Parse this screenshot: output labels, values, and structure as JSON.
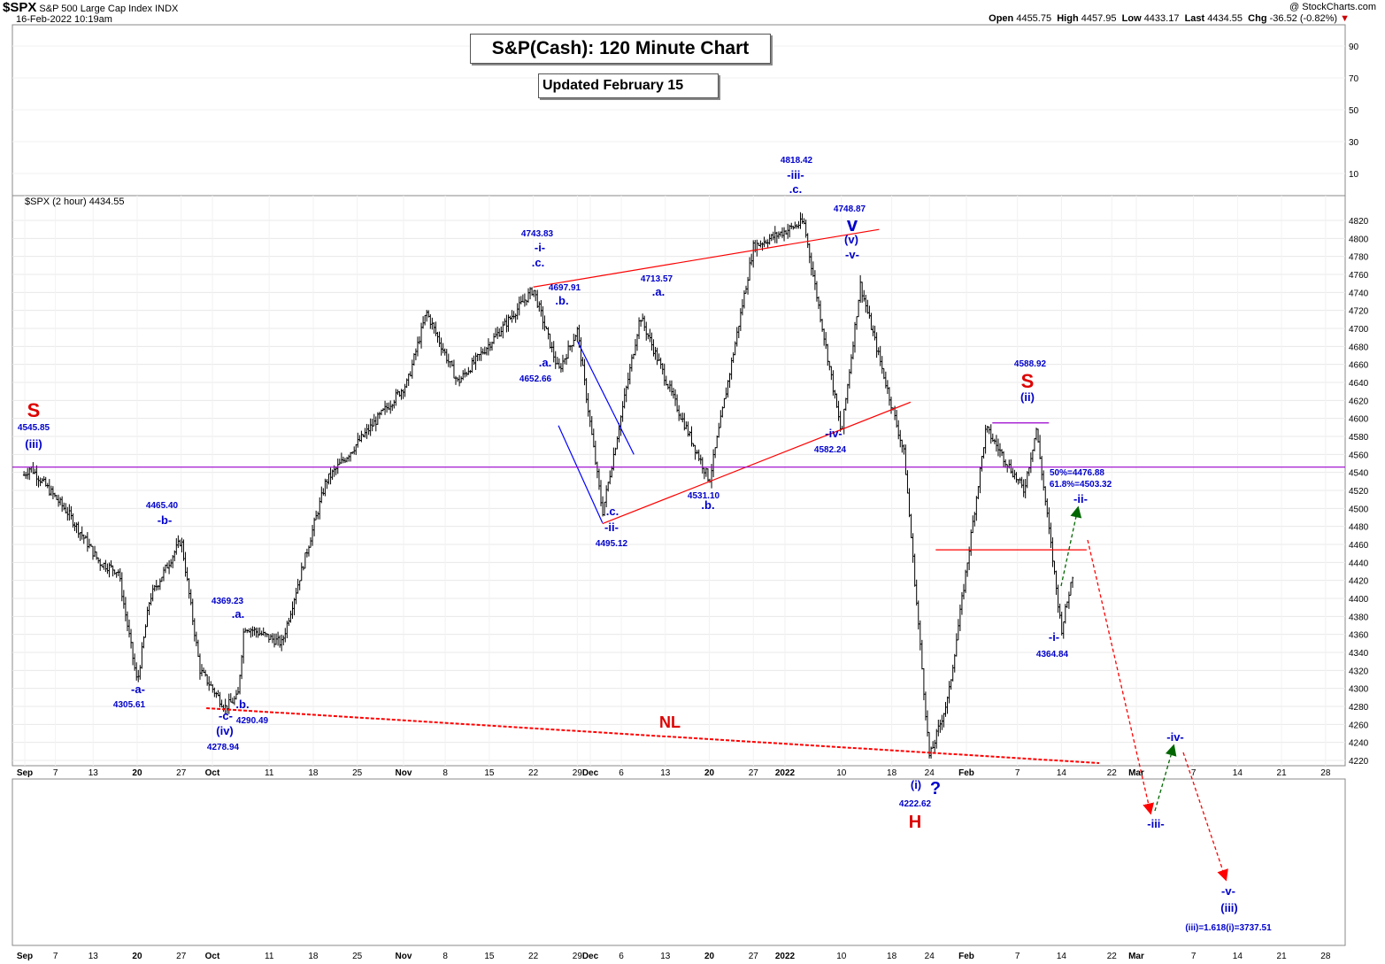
{
  "header": {
    "symbol": "$SPX",
    "description": "S&P 500 Large Cap Index",
    "exchange": "INDX",
    "datetime": "16-Feb-2022 10:19am",
    "copyright": "@ StockCharts.com",
    "open_label": "Open",
    "open": "4455.75",
    "high_label": "High",
    "high": "4457.95",
    "low_label": "Low",
    "low": "4433.17",
    "last_label": "Last",
    "last": "4434.55",
    "chg_label": "Chg",
    "chg": "-36.52 (-0.82%)",
    "legend": "$SPX (2 hour) 4434.55"
  },
  "title": "S&P(Cash): 120 Minute Chart",
  "subtitle": "Updated February 15",
  "colors": {
    "price": "#000000",
    "wave_label": "#0000cc",
    "pattern_label": "#dd0000",
    "trendline": "#ff0000",
    "horizontal": "#9900cc",
    "channel": "#0000ff",
    "projection_down": "#ff0000",
    "projection_up": "#006600",
    "grid": "#e8e8e8"
  },
  "chart_data": [
    {
      "type": "ohlc",
      "timeframe": "2 hour",
      "ylim": [
        4210,
        4830
      ],
      "y_ticks": [
        4220,
        4240,
        4260,
        4280,
        4300,
        4320,
        4340,
        4360,
        4380,
        4400,
        4420,
        4440,
        4460,
        4480,
        4500,
        4520,
        4540,
        4560,
        4580,
        4600,
        4620,
        4640,
        4660,
        4680,
        4700,
        4720,
        4740,
        4760,
        4780,
        4800,
        4820
      ],
      "x_tick_labels": [
        "Sep",
        "7",
        "13",
        "20",
        "27",
        "Oct",
        "11",
        "18",
        "25",
        "Nov",
        "8",
        "15",
        "22",
        "29",
        "Dec",
        "6",
        "13",
        "20",
        "27",
        "2022",
        "10",
        "18",
        "24",
        "Feb",
        "7",
        "14",
        "22",
        "Mar",
        "7",
        "14",
        "21",
        "28"
      ],
      "anchor_points": [
        {
          "x": "2021-09-02",
          "y": 4537
        },
        {
          "x": "2021-09-03",
          "y": 4545.85
        },
        {
          "x": "2021-09-09",
          "y": 4495
        },
        {
          "x": "2021-09-14",
          "y": 4440
        },
        {
          "x": "2021-09-17",
          "y": 4430
        },
        {
          "x": "2021-09-20",
          "y": 4305.61
        },
        {
          "x": "2021-09-22",
          "y": 4400
        },
        {
          "x": "2021-09-27",
          "y": 4465.4
        },
        {
          "x": "2021-09-30",
          "y": 4320
        },
        {
          "x": "2021-10-04",
          "y": 4278.94
        },
        {
          "x": "2021-10-07",
          "y": 4369.23
        },
        {
          "x": "2021-10-06",
          "y": 4290.49
        },
        {
          "x": "2021-10-13",
          "y": 4350
        },
        {
          "x": "2021-10-20",
          "y": 4530
        },
        {
          "x": "2021-11-02",
          "y": 4640
        },
        {
          "x": "2021-11-05",
          "y": 4718
        },
        {
          "x": "2021-11-10",
          "y": 4640
        },
        {
          "x": "2021-11-17",
          "y": 4700
        },
        {
          "x": "2021-11-22",
          "y": 4743.83
        },
        {
          "x": "2021-11-26",
          "y": 4652.66
        },
        {
          "x": "2021-11-29",
          "y": 4697.91
        },
        {
          "x": "2021-12-03",
          "y": 4495.12
        },
        {
          "x": "2021-12-09",
          "y": 4713.57
        },
        {
          "x": "2021-12-15",
          "y": 4610
        },
        {
          "x": "2021-12-20",
          "y": 4531.1
        },
        {
          "x": "2021-12-27",
          "y": 4791
        },
        {
          "x": "2022-01-04",
          "y": 4818.42
        },
        {
          "x": "2022-01-10",
          "y": 4582.24
        },
        {
          "x": "2022-01-13",
          "y": 4748.87
        },
        {
          "x": "2022-01-20",
          "y": 4560
        },
        {
          "x": "2022-01-24",
          "y": 4222.62
        },
        {
          "x": "2022-01-27",
          "y": 4290
        },
        {
          "x": "2022-02-02",
          "y": 4588.92
        },
        {
          "x": "2022-02-08",
          "y": 4520
        },
        {
          "x": "2022-02-10",
          "y": 4588
        },
        {
          "x": "2022-02-14",
          "y": 4364.84
        },
        {
          "x": "2022-02-16",
          "y": 4434.55
        }
      ]
    },
    {
      "type": "line",
      "name": "right_upper_scale",
      "y_ticks": [
        10,
        30,
        50,
        70,
        90
      ]
    }
  ],
  "lines": {
    "upper_channel": {
      "start": [
        "2021-11-22",
        4746
      ],
      "end": [
        "2022-01-16",
        4810
      ]
    },
    "lower_channel": {
      "start": [
        "2021-12-03",
        4483
      ],
      "end": [
        "2022-01-21",
        4618
      ]
    },
    "dec_wedge": {
      "start": [
        "2021-11-29",
        4686
      ],
      "end": [
        "2021-12-08",
        4560
      ]
    },
    "dec_wedge_low": {
      "start": [
        "2021-11-26",
        4592
      ],
      "end": [
        "2021-12-03",
        4484
      ]
    },
    "purple_level": {
      "y": 4545.85
    },
    "purple_level_short": {
      "start": "2022-02-03",
      "end": "2022-02-12",
      "y": 4595
    },
    "red_level_short": {
      "start": "2022-01-25",
      "end": "2022-02-18",
      "y": 4454
    },
    "neckline": {
      "start": [
        "2021-10-01",
        4278
      ],
      "end": [
        "2022-02-20",
        4217
      ]
    }
  },
  "annotations": [
    {
      "text": "S",
      "color": "pattern_label",
      "kind": "big"
    },
    {
      "text": "4545.85",
      "color": "wave_label",
      "kind": "price"
    },
    {
      "text": "(iii)",
      "color": "wave_label",
      "kind": "wave"
    },
    {
      "text": "4465.40",
      "color": "wave_label",
      "kind": "price"
    },
    {
      "text": "-b-",
      "color": "wave_label",
      "kind": "wave"
    },
    {
      "text": "-a-",
      "color": "wave_label",
      "kind": "wave"
    },
    {
      "text": "4305.61",
      "color": "wave_label",
      "kind": "price"
    },
    {
      "text": "4369.23",
      "color": "wave_label",
      "kind": "price"
    },
    {
      "text": ".a.",
      "color": "wave_label",
      "kind": "wave"
    },
    {
      "text": ".b.",
      "color": "wave_label",
      "kind": "wave"
    },
    {
      "text": "-c-",
      "color": "wave_label",
      "kind": "wave"
    },
    {
      "text": "4290.49",
      "color": "wave_label",
      "kind": "price"
    },
    {
      "text": "(iv)",
      "color": "wave_label",
      "kind": "wave"
    },
    {
      "text": "4278.94",
      "color": "wave_label",
      "kind": "price"
    },
    {
      "text": "4743.83",
      "color": "wave_label",
      "kind": "price"
    },
    {
      "text": "-i-",
      "color": "wave_label",
      "kind": "wave"
    },
    {
      "text": ".c.",
      "color": "wave_label",
      "kind": "wave"
    },
    {
      "text": "4697.91",
      "color": "wave_label",
      "kind": "price"
    },
    {
      "text": ".b.",
      "color": "wave_label",
      "kind": "wave"
    },
    {
      "text": ".a.",
      "color": "wave_label",
      "kind": "wave"
    },
    {
      "text": "4652.66",
      "color": "wave_label",
      "kind": "price"
    },
    {
      "text": ".c.",
      "color": "wave_label",
      "kind": "wave"
    },
    {
      "text": "-ii-",
      "color": "wave_label",
      "kind": "wave"
    },
    {
      "text": "4495.12",
      "color": "wave_label",
      "kind": "price"
    },
    {
      "text": "4713.57",
      "color": "wave_label",
      "kind": "price"
    },
    {
      "text": ".a.",
      "color": "wave_label",
      "kind": "wave"
    },
    {
      "text": ".b.",
      "color": "wave_label",
      "kind": "wave"
    },
    {
      "text": "4531.10",
      "color": "wave_label",
      "kind": "price"
    },
    {
      "text": "4818.42",
      "color": "wave_label",
      "kind": "price"
    },
    {
      "text": "-iii-",
      "color": "wave_label",
      "kind": "wave"
    },
    {
      "text": ".c.",
      "color": "wave_label",
      "kind": "wave"
    },
    {
      "text": "4748.87",
      "color": "wave_label",
      "kind": "price"
    },
    {
      "text": "v",
      "color": "wave_label",
      "kind": "big"
    },
    {
      "text": "(v)",
      "color": "wave_label",
      "kind": "wave"
    },
    {
      "text": "-v-",
      "color": "wave_label",
      "kind": "wave"
    },
    {
      "text": "-iv-",
      "color": "wave_label",
      "kind": "wave"
    },
    {
      "text": "4582.24",
      "color": "wave_label",
      "kind": "price"
    },
    {
      "text": "4588.92",
      "color": "wave_label",
      "kind": "price"
    },
    {
      "text": "S",
      "color": "pattern_label",
      "kind": "big"
    },
    {
      "text": "(ii)",
      "color": "wave_label",
      "kind": "wave"
    },
    {
      "text": "50%=4476.88",
      "color": "wave_label",
      "kind": "price"
    },
    {
      "text": "61.8%=4503.32",
      "color": "wave_label",
      "kind": "price"
    },
    {
      "text": "-ii-",
      "color": "wave_label",
      "kind": "wave"
    },
    {
      "text": "-i-",
      "color": "wave_label",
      "kind": "wave"
    },
    {
      "text": "4364.84",
      "color": "wave_label",
      "kind": "price"
    },
    {
      "text": "NL",
      "color": "pattern_label",
      "kind": "big"
    },
    {
      "text": "(i)",
      "color": "wave_label",
      "kind": "wave"
    },
    {
      "text": "?",
      "color": "wave_label",
      "kind": "big"
    },
    {
      "text": "4222.62",
      "color": "wave_label",
      "kind": "price"
    },
    {
      "text": "H",
      "color": "pattern_label",
      "kind": "big"
    },
    {
      "text": "-iv-",
      "color": "wave_label",
      "kind": "wave"
    },
    {
      "text": "-iii-",
      "color": "wave_label",
      "kind": "wave"
    },
    {
      "text": "-v-",
      "color": "wave_label",
      "kind": "wave"
    },
    {
      "text": "(iii)",
      "color": "wave_label",
      "kind": "wave"
    },
    {
      "text": "(iii)=1.618(i)=3737.51",
      "color": "wave_label",
      "kind": "price"
    }
  ]
}
